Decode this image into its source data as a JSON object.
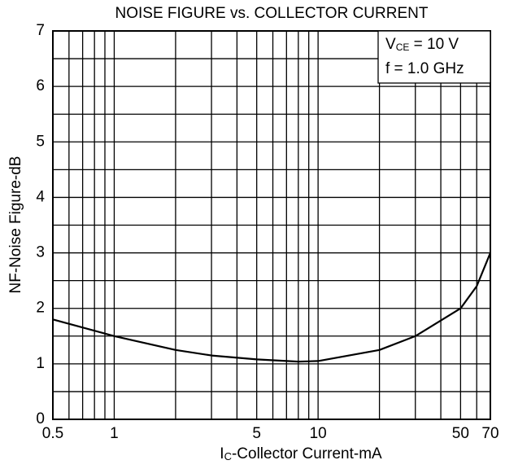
{
  "chart_data": {
    "type": "line",
    "title": "NOISE FIGURE vs. COLLECTOR CURRENT",
    "x_label": {
      "main": "I",
      "sub": "C",
      "rest": "-Collector Current-mA"
    },
    "y_label": "NF-Noise Figure-dB",
    "annotations": [
      {
        "main": "V",
        "sub": "CE",
        "rest": " = 10 V"
      },
      {
        "main": "f = 1.0 GHz"
      }
    ],
    "x_log": true,
    "xlim": [
      0.5,
      70
    ],
    "xticks": [
      0.5,
      1,
      5,
      10,
      50,
      70
    ],
    "xminor": [
      0.6,
      0.7,
      0.8,
      0.9,
      2,
      3,
      4,
      6,
      7,
      8,
      9,
      20,
      30,
      40,
      60
    ],
    "ylim": [
      0,
      7
    ],
    "yticks": [
      0,
      1,
      2,
      3,
      4,
      5,
      6,
      7
    ],
    "yminor": [
      0.5,
      1.5,
      2.5,
      3.5,
      4.5,
      5.5,
      6.5
    ],
    "grid": true,
    "series": [
      {
        "color": "#000000",
        "x": [
          0.5,
          1,
          2,
          3,
          5,
          8,
          10,
          20,
          30,
          50,
          60,
          70
        ],
        "values": [
          1.8,
          1.5,
          1.25,
          1.15,
          1.08,
          1.04,
          1.05,
          1.25,
          1.5,
          2.0,
          2.4,
          3.0
        ]
      }
    ]
  }
}
